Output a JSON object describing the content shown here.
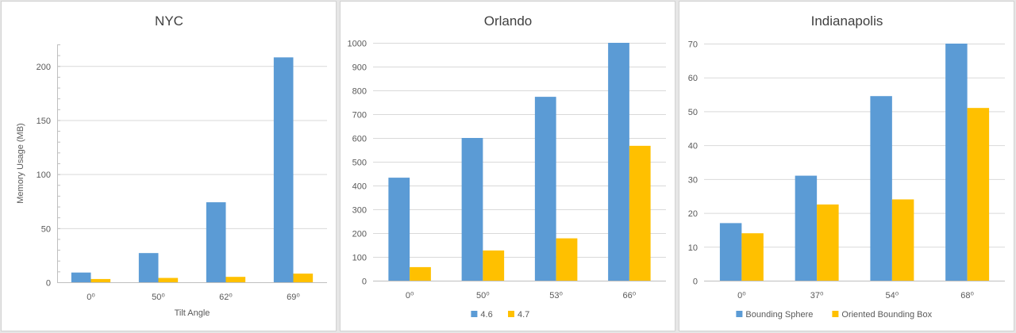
{
  "chart_data": [
    {
      "type": "bar",
      "title": "NYC",
      "xlabel": "Tilt Angle",
      "ylabel": "Memory Usage (MB)",
      "categories": [
        "0⁰",
        "50⁰",
        "62⁰",
        "69⁰"
      ],
      "series": [
        {
          "values": [
            9,
            27,
            74,
            208
          ],
          "color": "#5b9bd5"
        },
        {
          "values": [
            3,
            4,
            5,
            8
          ],
          "color": "#ffc000"
        }
      ],
      "ylim": [
        0,
        220
      ],
      "yticks": [
        0,
        50,
        100,
        150,
        200
      ],
      "grid": true,
      "legend": "none"
    },
    {
      "type": "bar",
      "title": "Orlando",
      "xlabel": "",
      "ylabel": "",
      "categories": [
        "0⁰",
        "50⁰",
        "53⁰",
        "66⁰"
      ],
      "series": [
        {
          "name": "4.6",
          "values": [
            433,
            600,
            773,
            1000
          ],
          "color": "#5b9bd5"
        },
        {
          "name": "4.7",
          "values": [
            57,
            127,
            178,
            567
          ],
          "color": "#ffc000"
        }
      ],
      "ylim": [
        0,
        1000
      ],
      "yticks": [
        0,
        100,
        200,
        300,
        400,
        500,
        600,
        700,
        800,
        900,
        1000
      ],
      "grid": true,
      "legend": "bottom"
    },
    {
      "type": "bar",
      "title": "Indianapolis",
      "xlabel": "",
      "ylabel": "",
      "categories": [
        "0⁰",
        "37⁰",
        "54⁰",
        "68⁰"
      ],
      "series": [
        {
          "name": "Bounding Sphere",
          "values": [
            17,
            31,
            54.5,
            70
          ],
          "color": "#5b9bd5"
        },
        {
          "name": "Oriented Bounding Box",
          "values": [
            14,
            22.5,
            24,
            51
          ],
          "color": "#ffc000"
        }
      ],
      "ylim": [
        0,
        70
      ],
      "yticks": [
        0,
        10,
        20,
        30,
        40,
        50,
        60,
        70
      ],
      "grid": true,
      "legend": "bottom"
    }
  ]
}
